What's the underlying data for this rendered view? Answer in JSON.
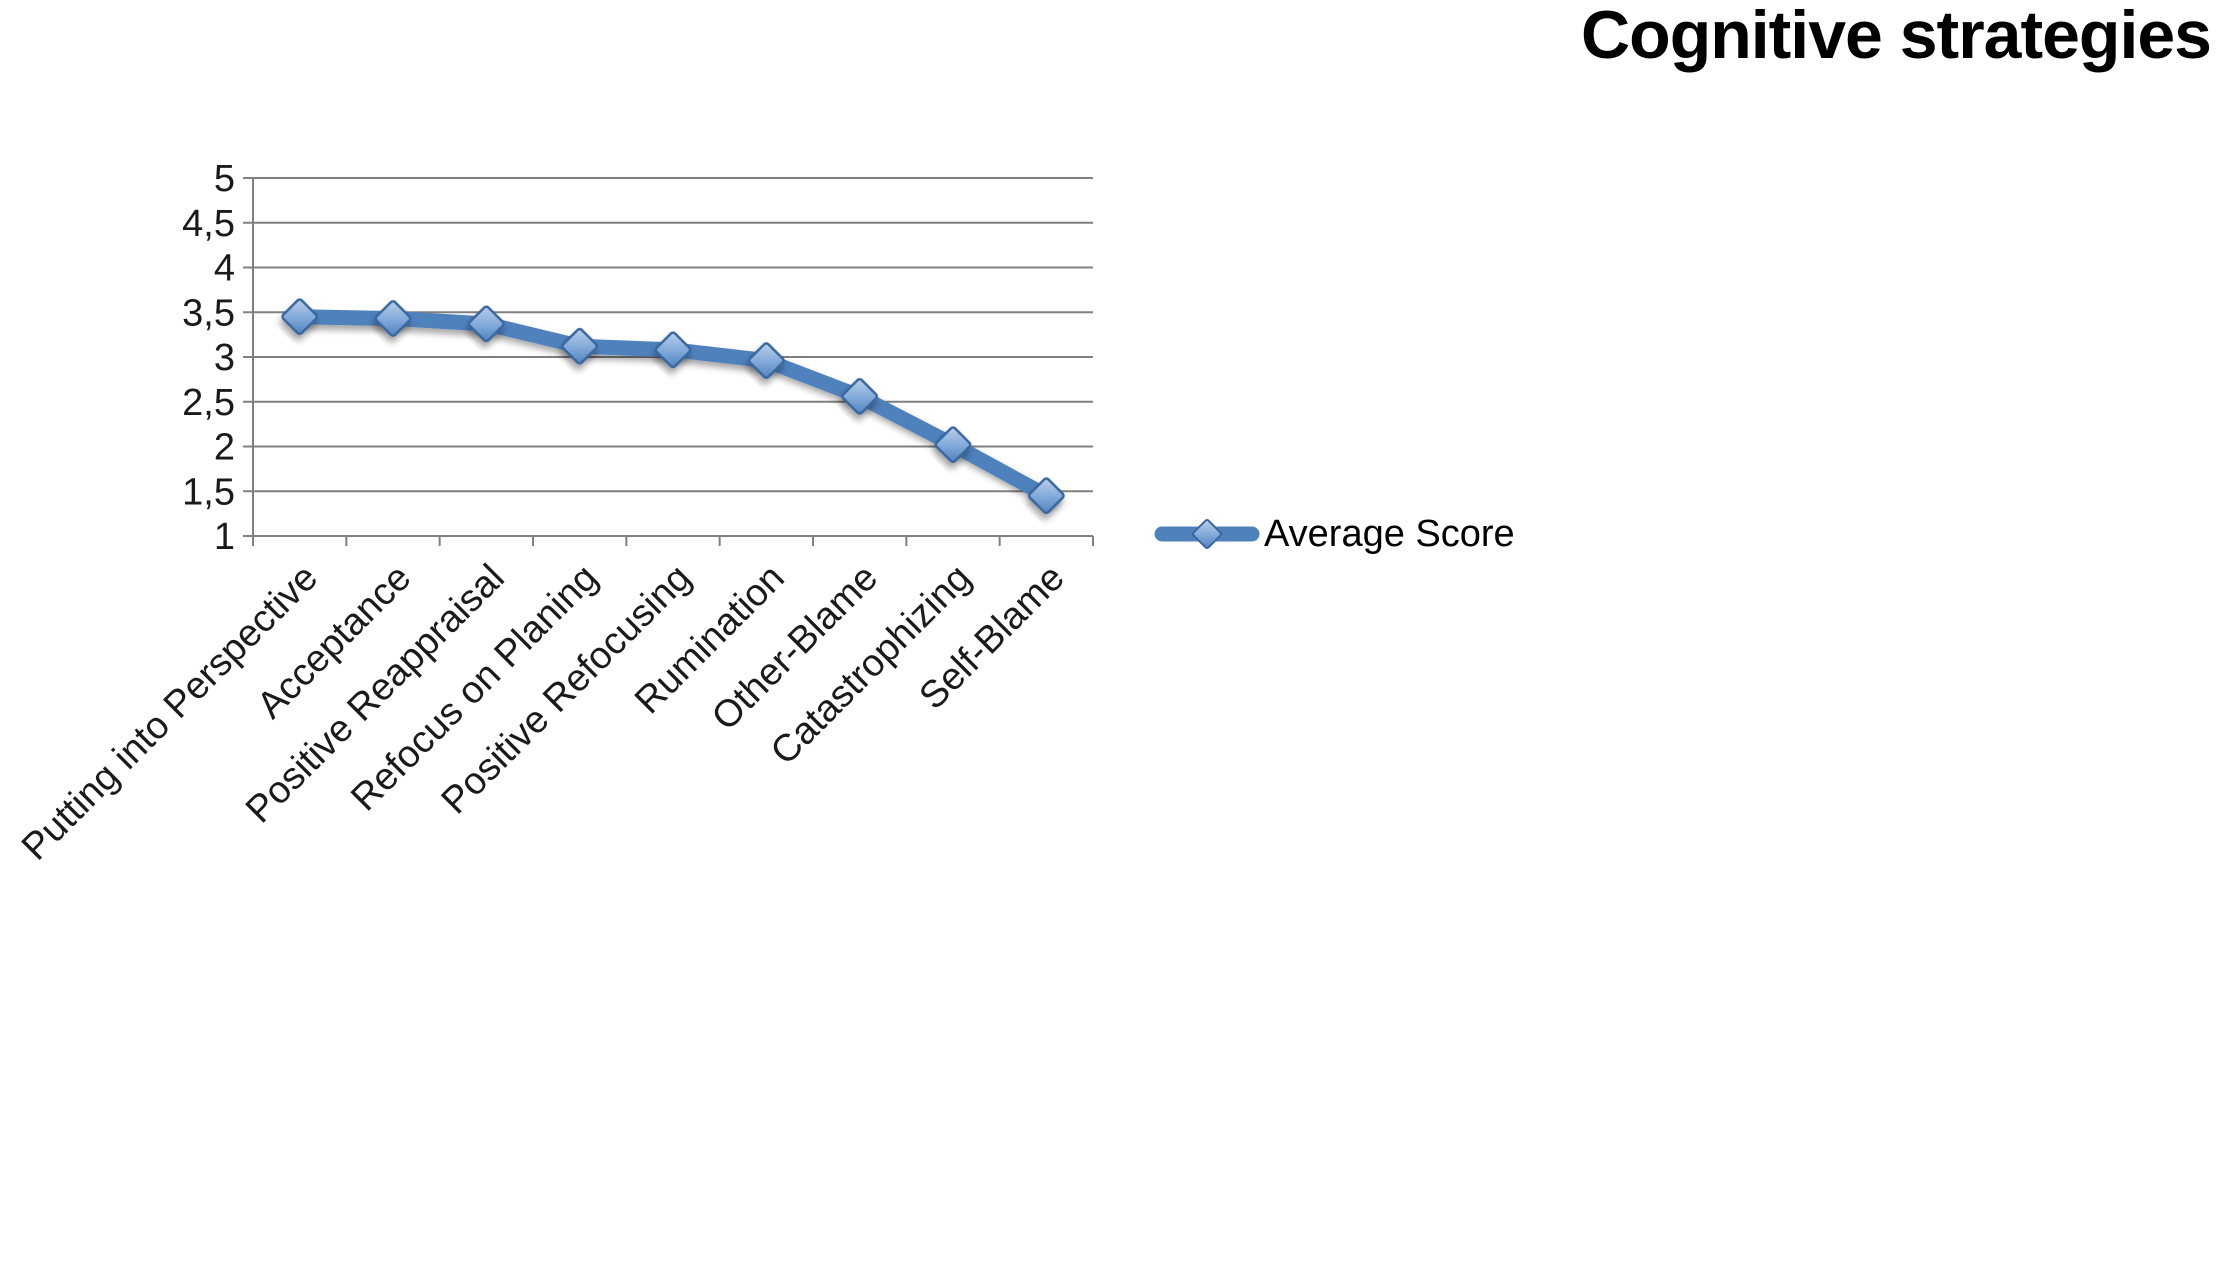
{
  "title": "Cognitive strategies",
  "legend": {
    "label": "Average Score"
  },
  "chart_data": {
    "type": "line",
    "title": "Cognitive strategies",
    "categories": [
      "Putting into Perspective",
      "Acceptance",
      "Positive Reappraisal",
      "Refocus on Planing",
      "Positive Refocusing",
      "Rumination",
      "Other-Blame",
      "Catastrophizing",
      "Self-Blame"
    ],
    "series": [
      {
        "name": "Average Score",
        "values": [
          3.45,
          3.43,
          3.37,
          3.12,
          3.08,
          2.96,
          2.56,
          2.02,
          1.45
        ]
      }
    ],
    "xlabel": "",
    "ylabel": "",
    "ylim": [
      1,
      5
    ],
    "ytick_values": [
      1,
      1.5,
      2,
      2.5,
      3,
      3.5,
      4,
      4.5,
      5
    ],
    "ytick_labels": [
      "1",
      "1,5",
      "2",
      "2,5",
      "3",
      "3,5",
      "4",
      "4,5",
      "5"
    ],
    "decimal_separator": ",",
    "grid": "horizontal",
    "legend_position": "right",
    "line_color": "#4f81bd",
    "marker_shape": "diamond",
    "marker_fill": "#7fa8d9",
    "marker_fill_light": "#bcd0e9",
    "marker_stroke": "#39669e",
    "gridline_color": "#808080",
    "axis_text_color": "#1a1a1a"
  }
}
